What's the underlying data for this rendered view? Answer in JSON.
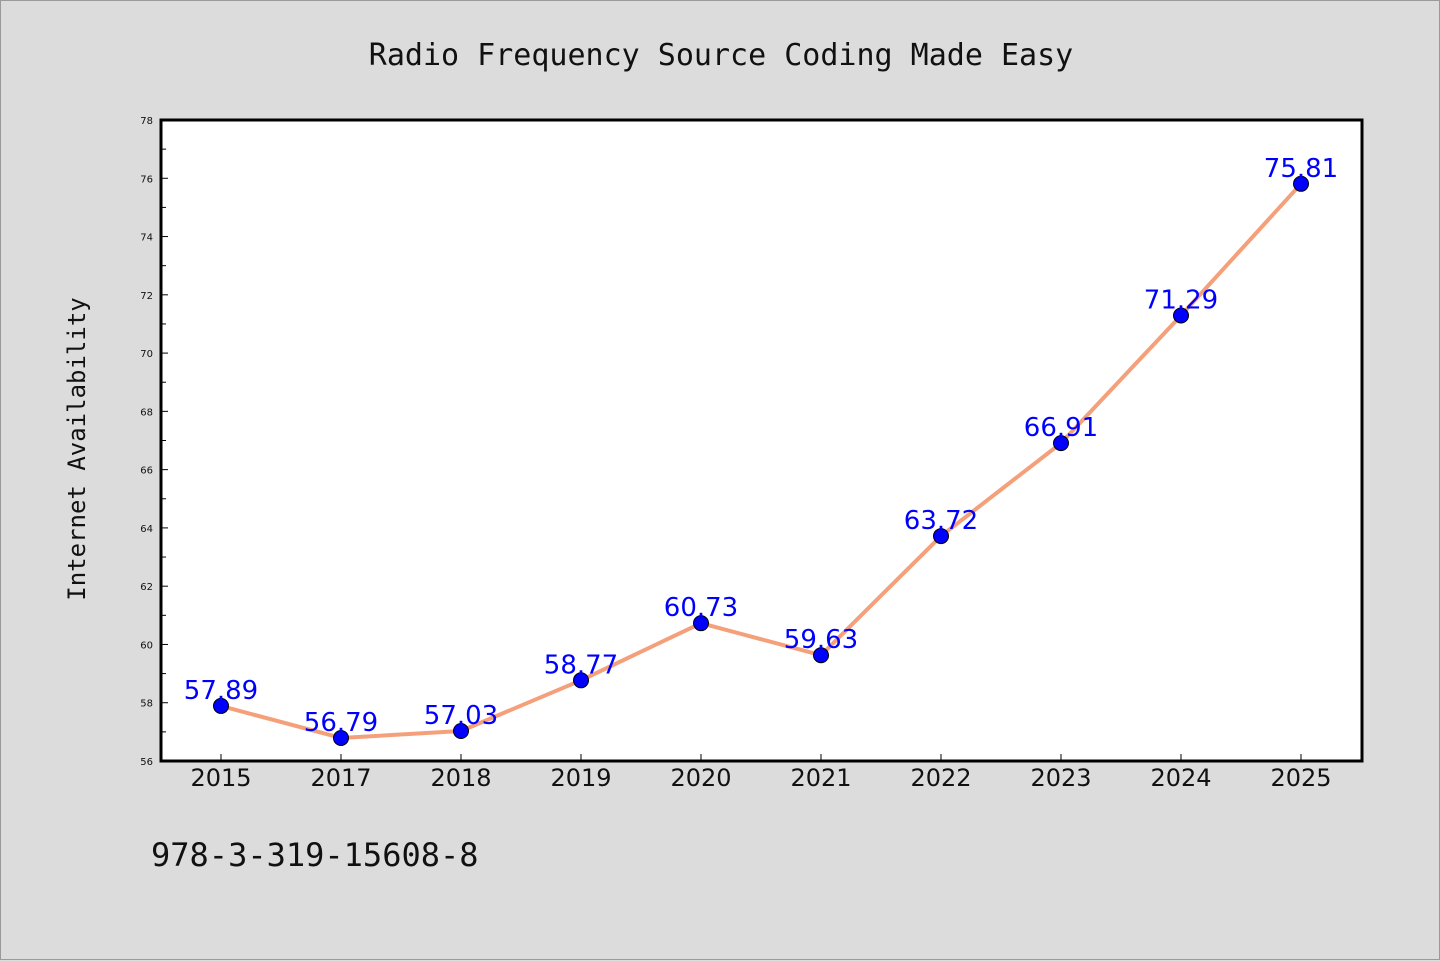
{
  "chart_data": {
    "type": "line",
    "title": "Radio Frequency Source Coding Made Easy",
    "xlabel": "",
    "ylabel": "Internet Availability",
    "categories": [
      "2015",
      "2017",
      "2018",
      "2019",
      "2020",
      "2021",
      "2022",
      "2023",
      "2024",
      "2025"
    ],
    "series": [
      {
        "values": [
          57.89,
          56.79,
          57.03,
          58.77,
          60.73,
          59.63,
          63.72,
          66.91,
          71.29,
          75.81
        ],
        "labels": [
          "57.89",
          "56.79",
          "57.03",
          "58.77",
          "60.73",
          "59.63",
          "63.72",
          "66.91",
          "71.29",
          "75.81"
        ]
      }
    ],
    "ylim": [
      56,
      78
    ],
    "yticks": [
      "56",
      "58",
      "60",
      "62",
      "64",
      "66",
      "68",
      "70",
      "72",
      "74",
      "76",
      "78"
    ],
    "grid": false,
    "legend": "none",
    "colors": {
      "line": "#f4a07a",
      "marker": "#0000ff",
      "data_label": "#0000ff",
      "background": "#dcdcdc",
      "plot_background": "#ffffff"
    },
    "annotation": "978-3-319-15608-8"
  }
}
